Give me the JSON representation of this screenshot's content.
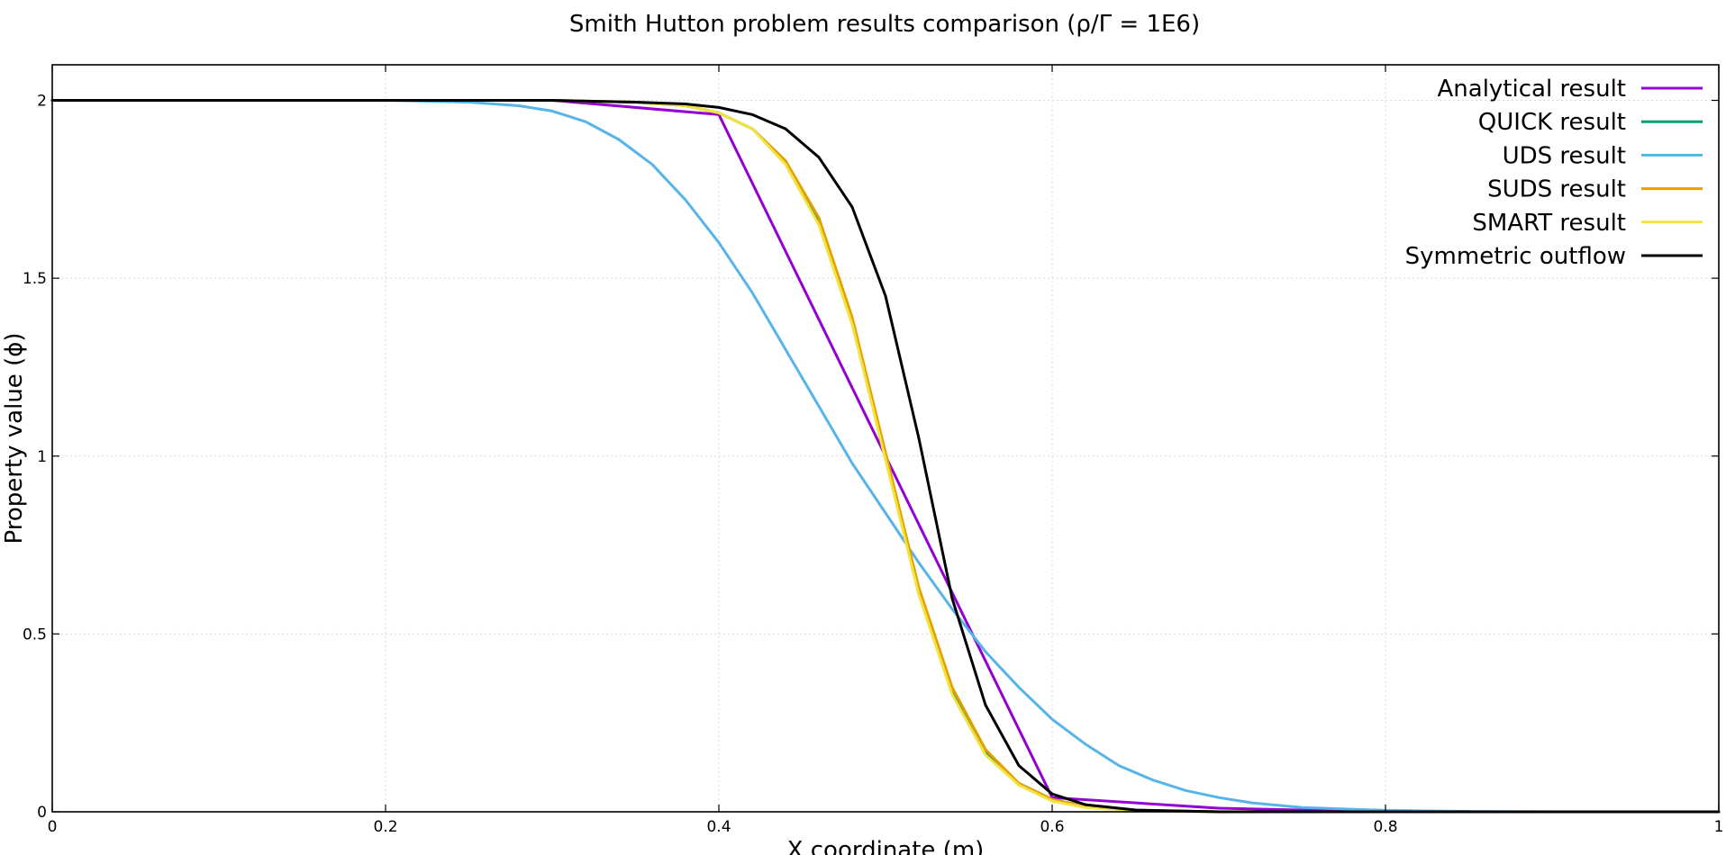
{
  "chart_data": {
    "type": "line",
    "title": "Smith Hutton problem results comparison (ρ/Γ = 1E6)",
    "xlabel": "X coordinate (m)",
    "ylabel": "Property value (ϕ)",
    "xlim": [
      0,
      1
    ],
    "ylim": [
      0,
      2.1
    ],
    "xticks": [
      0,
      0.2,
      0.4,
      0.6,
      0.8,
      1
    ],
    "xtick_labels": [
      "0",
      "0.2",
      "0.4",
      "0.6",
      "0.8",
      "1"
    ],
    "yticks": [
      0,
      0.5,
      1,
      1.5,
      2
    ],
    "ytick_labels": [
      "0",
      "0.5",
      "1",
      "1.5",
      "2"
    ],
    "grid": true,
    "legend_position": "top-right",
    "series": [
      {
        "name": "Analytical result",
        "color": "#9400d3",
        "points": [
          [
            0,
            2
          ],
          [
            0.3,
            2
          ],
          [
            0.4,
            1.96
          ],
          [
            0.6,
            0.04
          ],
          [
            0.7,
            0.01
          ],
          [
            0.8,
            0
          ],
          [
            1,
            0
          ]
        ]
      },
      {
        "name": "QUICK result",
        "color": "#009e73",
        "points": [
          [
            0,
            2
          ],
          [
            0.3,
            2
          ],
          [
            0.35,
            1.995
          ],
          [
            0.38,
            1.985
          ],
          [
            0.4,
            1.965
          ],
          [
            0.42,
            1.92
          ],
          [
            0.44,
            1.83
          ],
          [
            0.46,
            1.66
          ],
          [
            0.48,
            1.38
          ],
          [
            0.5,
            1.0
          ],
          [
            0.52,
            0.62
          ],
          [
            0.54,
            0.34
          ],
          [
            0.56,
            0.17
          ],
          [
            0.58,
            0.08
          ],
          [
            0.6,
            0.035
          ],
          [
            0.62,
            0.015
          ],
          [
            0.65,
            0.004
          ],
          [
            0.7,
            0
          ],
          [
            1,
            0
          ]
        ]
      },
      {
        "name": "UDS result",
        "color": "#56b4e9",
        "points": [
          [
            0,
            2
          ],
          [
            0.2,
            2
          ],
          [
            0.25,
            1.995
          ],
          [
            0.28,
            1.985
          ],
          [
            0.3,
            1.97
          ],
          [
            0.32,
            1.94
          ],
          [
            0.34,
            1.89
          ],
          [
            0.36,
            1.82
          ],
          [
            0.38,
            1.72
          ],
          [
            0.4,
            1.6
          ],
          [
            0.42,
            1.46
          ],
          [
            0.44,
            1.3
          ],
          [
            0.46,
            1.14
          ],
          [
            0.48,
            0.98
          ],
          [
            0.5,
            0.84
          ],
          [
            0.52,
            0.7
          ],
          [
            0.54,
            0.57
          ],
          [
            0.56,
            0.45
          ],
          [
            0.58,
            0.35
          ],
          [
            0.6,
            0.26
          ],
          [
            0.62,
            0.19
          ],
          [
            0.64,
            0.13
          ],
          [
            0.66,
            0.09
          ],
          [
            0.68,
            0.06
          ],
          [
            0.7,
            0.04
          ],
          [
            0.72,
            0.025
          ],
          [
            0.75,
            0.012
          ],
          [
            0.8,
            0.004
          ],
          [
            0.85,
            0.001
          ],
          [
            0.9,
            0
          ],
          [
            1,
            0
          ]
        ]
      },
      {
        "name": "SUDS result",
        "color": "#e69f00",
        "points": [
          [
            0,
            2
          ],
          [
            0.3,
            2
          ],
          [
            0.35,
            1.995
          ],
          [
            0.38,
            1.985
          ],
          [
            0.4,
            1.965
          ],
          [
            0.42,
            1.92
          ],
          [
            0.44,
            1.83
          ],
          [
            0.46,
            1.67
          ],
          [
            0.48,
            1.39
          ],
          [
            0.5,
            1.01
          ],
          [
            0.52,
            0.63
          ],
          [
            0.54,
            0.35
          ],
          [
            0.56,
            0.175
          ],
          [
            0.58,
            0.08
          ],
          [
            0.6,
            0.035
          ],
          [
            0.62,
            0.015
          ],
          [
            0.65,
            0.004
          ],
          [
            0.7,
            0
          ],
          [
            1,
            0
          ]
        ]
      },
      {
        "name": "SMART result",
        "color": "#f0e442",
        "points": [
          [
            0,
            2
          ],
          [
            0.3,
            2
          ],
          [
            0.35,
            1.995
          ],
          [
            0.38,
            1.985
          ],
          [
            0.4,
            1.965
          ],
          [
            0.42,
            1.92
          ],
          [
            0.44,
            1.82
          ],
          [
            0.46,
            1.65
          ],
          [
            0.48,
            1.37
          ],
          [
            0.5,
            0.99
          ],
          [
            0.52,
            0.61
          ],
          [
            0.54,
            0.33
          ],
          [
            0.56,
            0.16
          ],
          [
            0.58,
            0.075
          ],
          [
            0.6,
            0.03
          ],
          [
            0.62,
            0.012
          ],
          [
            0.65,
            0.003
          ],
          [
            0.7,
            0
          ],
          [
            1,
            0
          ]
        ]
      },
      {
        "name": "Symmetric outflow",
        "color": "#000000",
        "points": [
          [
            0,
            2
          ],
          [
            0.3,
            2
          ],
          [
            0.35,
            1.995
          ],
          [
            0.38,
            1.99
          ],
          [
            0.4,
            1.98
          ],
          [
            0.42,
            1.96
          ],
          [
            0.44,
            1.92
          ],
          [
            0.46,
            1.84
          ],
          [
            0.48,
            1.7
          ],
          [
            0.5,
            1.45
          ],
          [
            0.52,
            1.05
          ],
          [
            0.54,
            0.6
          ],
          [
            0.56,
            0.3
          ],
          [
            0.58,
            0.13
          ],
          [
            0.6,
            0.05
          ],
          [
            0.62,
            0.02
          ],
          [
            0.65,
            0.005
          ],
          [
            0.7,
            0
          ],
          [
            1,
            0
          ]
        ]
      }
    ]
  }
}
